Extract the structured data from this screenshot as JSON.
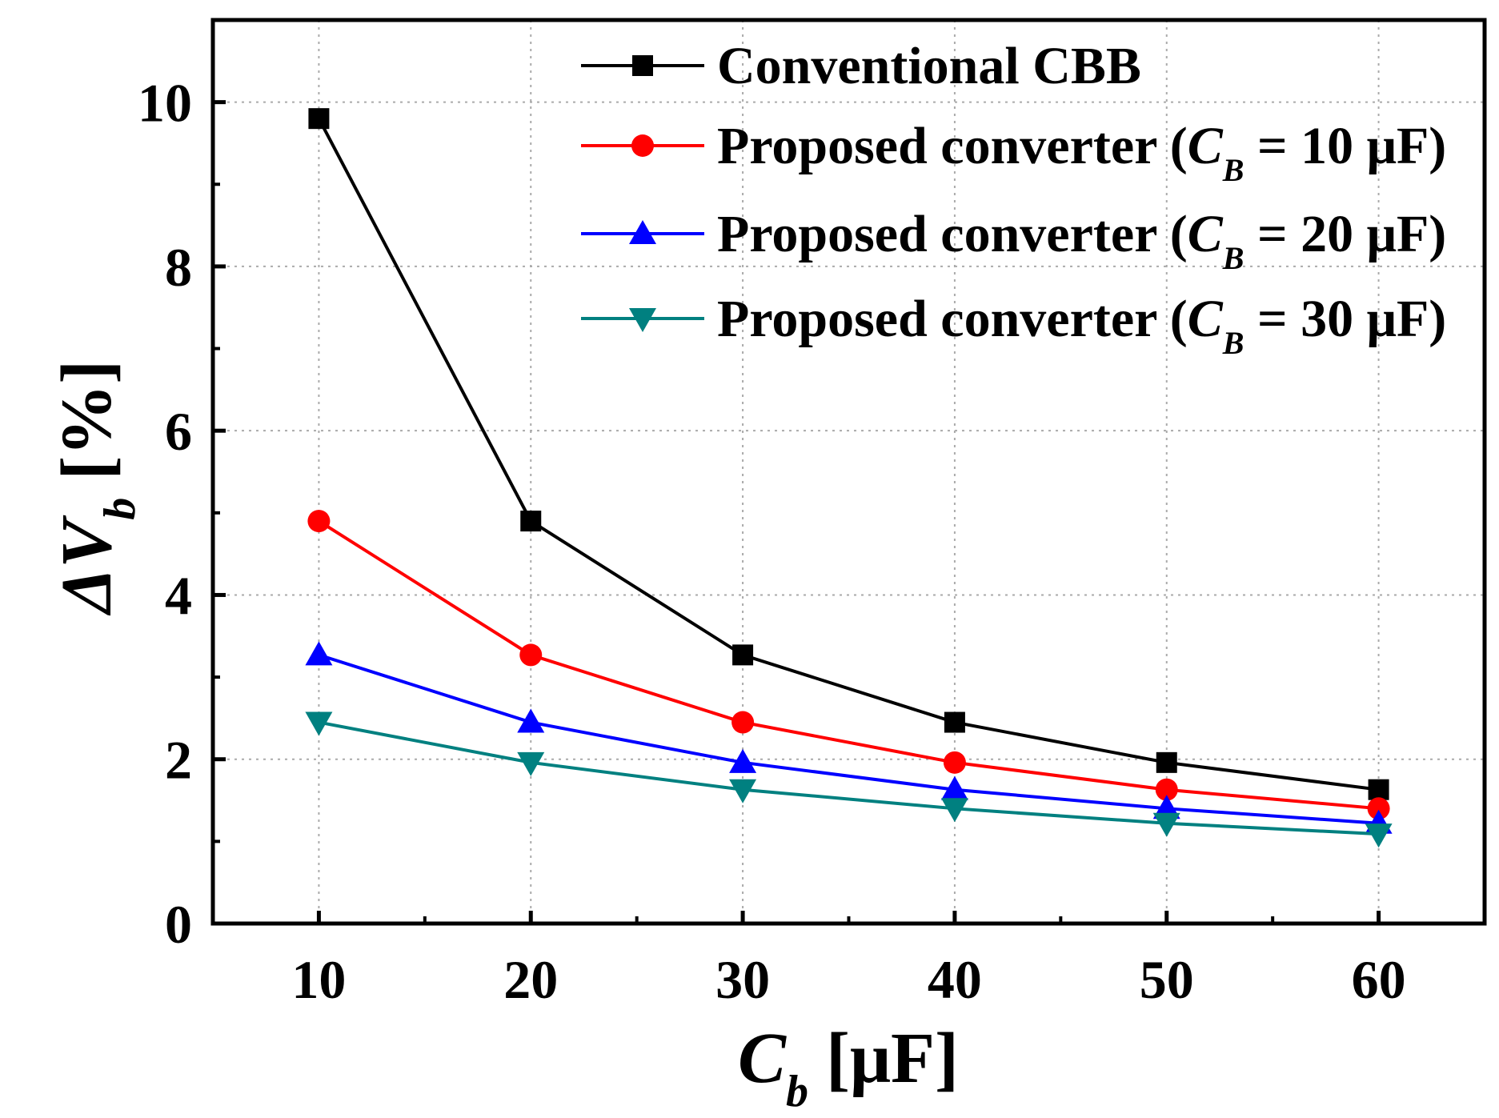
{
  "chart_data": {
    "type": "line",
    "title": "",
    "x": [
      10,
      20,
      30,
      40,
      50,
      60
    ],
    "xlim": [
      5,
      65
    ],
    "ylim": [
      0,
      11
    ],
    "xticks": [
      10,
      20,
      30,
      40,
      50,
      60
    ],
    "yticks": [
      0,
      2,
      4,
      6,
      8,
      10
    ],
    "xtick_labels": [
      "10",
      "20",
      "30",
      "40",
      "50",
      "60"
    ],
    "ytick_labels": [
      "0",
      "2",
      "4",
      "6",
      "8",
      "10"
    ],
    "xlabel": {
      "symbol": "C",
      "subscript": "b",
      "unit": "[μF]"
    },
    "ylabel": {
      "symbol": "ΔV",
      "subscript": "b",
      "unit": "[%]"
    },
    "grid": true,
    "legend_position": "top-right",
    "series": [
      {
        "name": "Conventional CBB",
        "legend": {
          "prefix": "Conventional CBB",
          "symbol": "",
          "subscript": "",
          "suffix": ""
        },
        "color": "#000000",
        "marker": "square",
        "values": [
          9.8,
          4.9,
          3.27,
          2.45,
          1.96,
          1.63
        ]
      },
      {
        "name": "Proposed converter (CB = 10 μF)",
        "legend": {
          "prefix": "Proposed converter (",
          "symbol": "C",
          "subscript": "B",
          "suffix": " = 10 μF)"
        },
        "color": "#ff0000",
        "marker": "circle",
        "values": [
          4.9,
          3.27,
          2.45,
          1.96,
          1.63,
          1.4
        ]
      },
      {
        "name": "Proposed converter (CB = 20 μF)",
        "legend": {
          "prefix": "Proposed converter (",
          "symbol": "C",
          "subscript": "B",
          "suffix": " = 20 μF)"
        },
        "color": "#0000ff",
        "marker": "triangle-up",
        "values": [
          3.27,
          2.45,
          1.96,
          1.63,
          1.4,
          1.22
        ]
      },
      {
        "name": "Proposed converter (CB = 30 μF)",
        "legend": {
          "prefix": "Proposed converter (",
          "symbol": "C",
          "subscript": "B",
          "suffix": " = 30 μF)"
        },
        "color": "#008080",
        "marker": "triangle-down",
        "values": [
          2.45,
          1.96,
          1.63,
          1.4,
          1.22,
          1.09
        ]
      }
    ]
  }
}
